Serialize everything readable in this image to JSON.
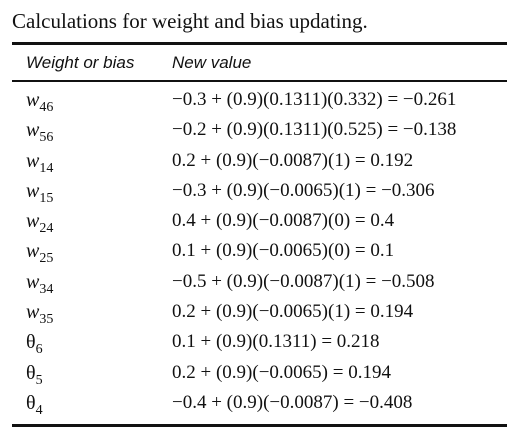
{
  "caption": "Calculations for weight and bias updating.",
  "headers": {
    "col1": "Weight or bias",
    "col2": "New value"
  },
  "rows": [
    {
      "sym": "w",
      "sub": "46",
      "value": "−0.3 + (0.9)(0.1311)(0.332) = −0.261"
    },
    {
      "sym": "w",
      "sub": "56",
      "value": "−0.2 + (0.9)(0.1311)(0.525) = −0.138"
    },
    {
      "sym": "w",
      "sub": "14",
      "value": "0.2 + (0.9)(−0.0087)(1) = 0.192"
    },
    {
      "sym": "w",
      "sub": "15",
      "value": "−0.3 + (0.9)(−0.0065)(1) = −0.306"
    },
    {
      "sym": "w",
      "sub": "24",
      "value": "0.4 + (0.9)(−0.0087)(0) = 0.4"
    },
    {
      "sym": "w",
      "sub": "25",
      "value": "0.1 + (0.9)(−0.0065)(0) = 0.1"
    },
    {
      "sym": "w",
      "sub": "34",
      "value": "−0.5 + (0.9)(−0.0087)(1) = −0.508"
    },
    {
      "sym": "w",
      "sub": "35",
      "value": "0.2 + (0.9)(−0.0065)(1) = 0.194"
    },
    {
      "sym": "θ",
      "sub": "6",
      "value": "0.1 + (0.9)(0.1311) = 0.218"
    },
    {
      "sym": "θ",
      "sub": "5",
      "value": "0.2 + (0.9)(−0.0065) = 0.194"
    },
    {
      "sym": "θ",
      "sub": "4",
      "value": "−0.4 + (0.9)(−0.0087) = −0.408"
    }
  ]
}
